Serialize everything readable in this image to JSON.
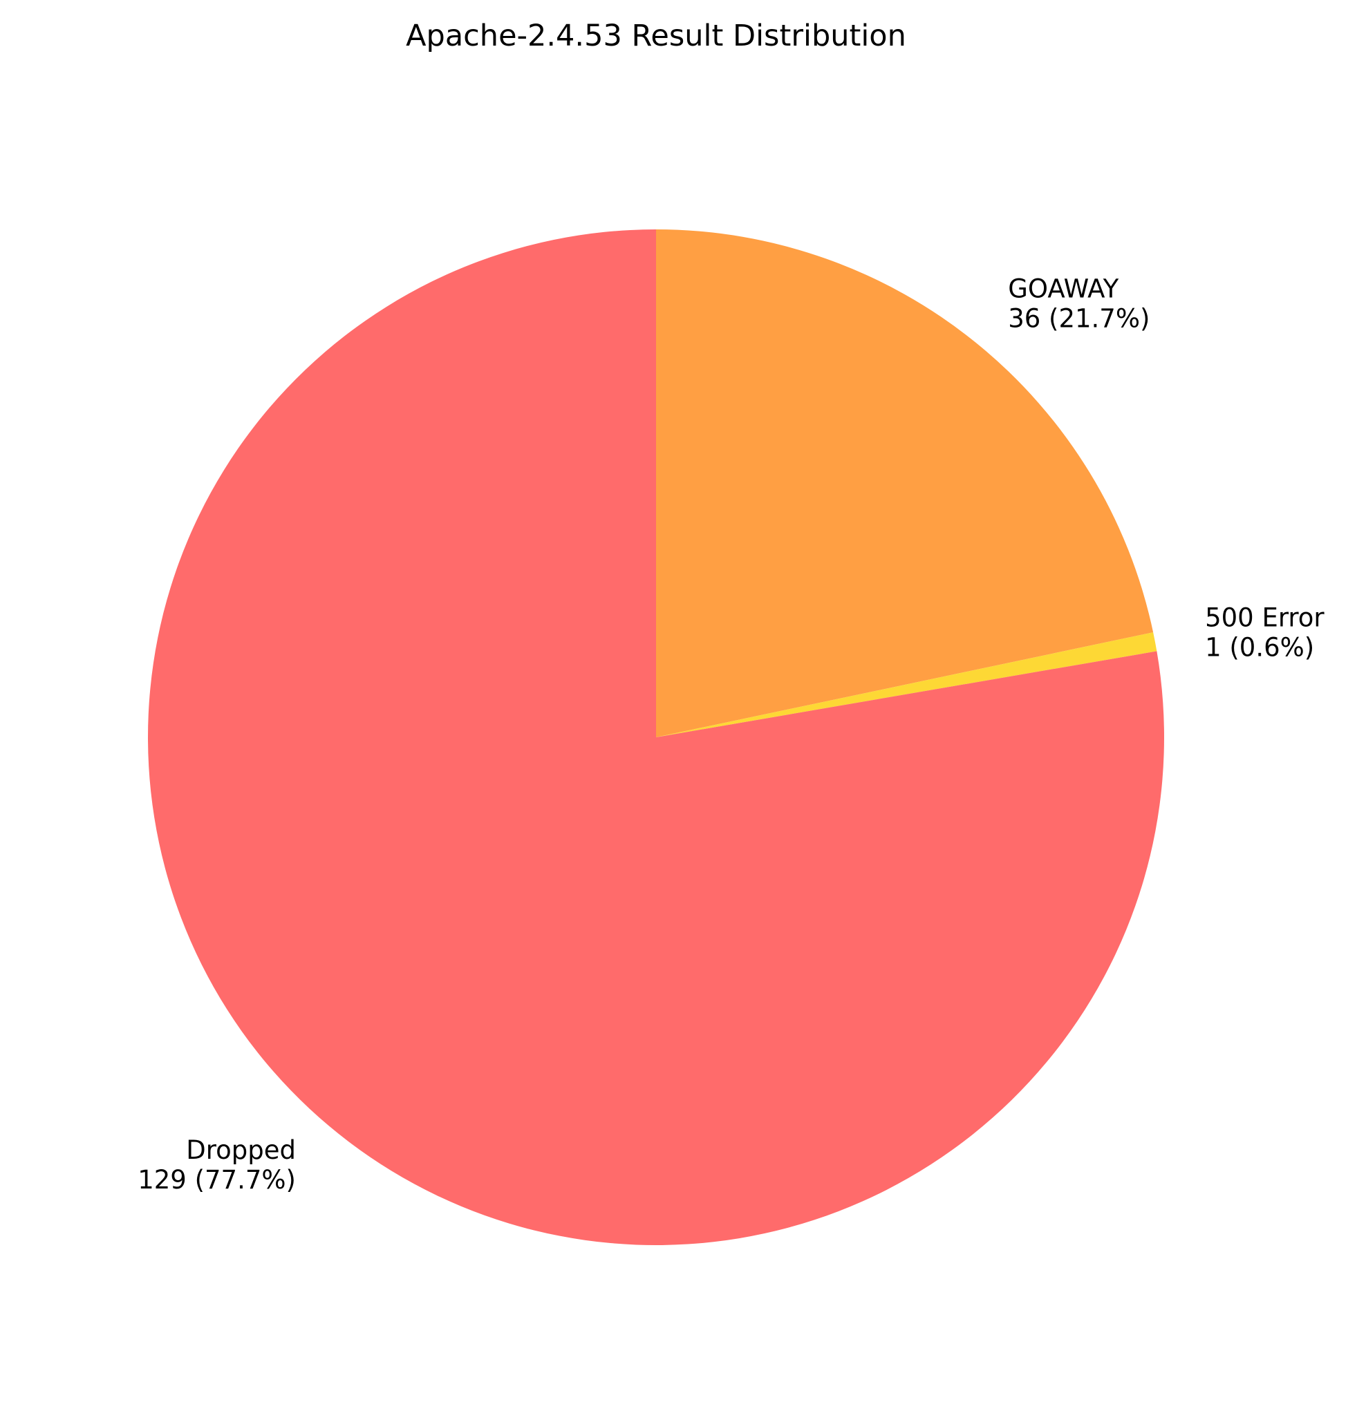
{
  "chart_data": {
    "type": "pie",
    "title": "Apache-2.4.53 Result Distribution",
    "slices": [
      {
        "label": "GOAWAY",
        "value": 36,
        "percent_label": "36 (21.7%)",
        "color": "#FF9F43"
      },
      {
        "label": "500 Error",
        "value": 1,
        "percent_label": "1 (0.6%)",
        "color": "#FDD835"
      },
      {
        "label": "Dropped",
        "value": 129,
        "percent_label": "129 (77.7%)",
        "color": "#FF6B6B"
      }
    ],
    "start_angle_deg": 90,
    "direction": "clockwise",
    "legend": "none"
  }
}
